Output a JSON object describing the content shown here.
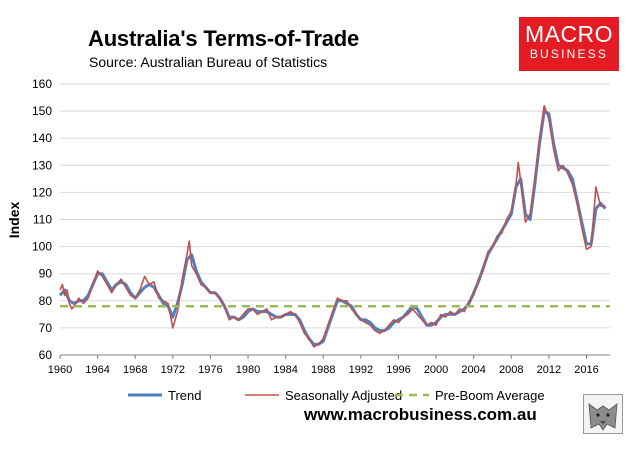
{
  "header": {
    "title": "Australia's Terms-of-Trade",
    "subtitle": "Source: Australian Bureau of Statistics"
  },
  "logo": {
    "line1": "MACRO",
    "line2": "BUSINESS",
    "color": "#e31b23"
  },
  "footer": {
    "url": "www.macrobusiness.com.au"
  },
  "colors": {
    "trend": "#4f81bd",
    "seasonally_adjusted": "#c0504d",
    "pre_boom": "#9bbb59",
    "grid": "#d9d9d9"
  },
  "chart_data": {
    "type": "line",
    "title": "Australia's Terms-of-Trade",
    "ylabel": "Index",
    "xlabel": "",
    "xlim": [
      1960,
      2018.5
    ],
    "ylim": [
      60,
      160
    ],
    "yticks": [
      "60",
      "70",
      "80",
      "90",
      "100",
      "110",
      "120",
      "130",
      "140",
      "150",
      "160"
    ],
    "xticks": [
      "1960",
      "1964",
      "1968",
      "1972",
      "1976",
      "1980",
      "1984",
      "1988",
      "1992",
      "1996",
      "2000",
      "2004",
      "2008",
      "2012",
      "2016"
    ],
    "grid": "horizontal",
    "legend_position": "bottom",
    "series": [
      {
        "name": "Trend",
        "style": "solid",
        "points": [
          [
            1960,
            82
          ],
          [
            1960.5,
            84
          ],
          [
            1961,
            80
          ],
          [
            1961.5,
            79
          ],
          [
            1962,
            80
          ],
          [
            1962.5,
            80
          ],
          [
            1963,
            82
          ],
          [
            1963.5,
            86
          ],
          [
            1964,
            90
          ],
          [
            1964.5,
            90
          ],
          [
            1965,
            87
          ],
          [
            1965.5,
            84
          ],
          [
            1966,
            86
          ],
          [
            1966.5,
            87
          ],
          [
            1967,
            86
          ],
          [
            1967.5,
            83
          ],
          [
            1968,
            81
          ],
          [
            1968.5,
            83
          ],
          [
            1969,
            85
          ],
          [
            1969.5,
            86
          ],
          [
            1970,
            85
          ],
          [
            1970.5,
            82
          ],
          [
            1971,
            79
          ],
          [
            1971.5,
            78
          ],
          [
            1972,
            74
          ],
          [
            1972.5,
            79
          ],
          [
            1973,
            86
          ],
          [
            1973.5,
            95
          ],
          [
            1974,
            97
          ],
          [
            1974.5,
            91
          ],
          [
            1975,
            87
          ],
          [
            1975.5,
            85
          ],
          [
            1976,
            83
          ],
          [
            1976.5,
            83
          ],
          [
            1977,
            81
          ],
          [
            1977.5,
            78
          ],
          [
            1978,
            74
          ],
          [
            1978.5,
            74
          ],
          [
            1979,
            73
          ],
          [
            1979.5,
            74
          ],
          [
            1980,
            76
          ],
          [
            1980.5,
            77
          ],
          [
            1981,
            76
          ],
          [
            1981.5,
            76
          ],
          [
            1982,
            76
          ],
          [
            1982.5,
            75
          ],
          [
            1983,
            74
          ],
          [
            1983.5,
            74
          ],
          [
            1984,
            75
          ],
          [
            1984.5,
            75
          ],
          [
            1985,
            75
          ],
          [
            1985.5,
            73
          ],
          [
            1986,
            69
          ],
          [
            1986.5,
            66
          ],
          [
            1987,
            64
          ],
          [
            1987.5,
            64
          ],
          [
            1988,
            65
          ],
          [
            1988.5,
            70
          ],
          [
            1989,
            75
          ],
          [
            1989.5,
            80
          ],
          [
            1990,
            80
          ],
          [
            1990.5,
            79
          ],
          [
            1991,
            78
          ],
          [
            1991.5,
            75
          ],
          [
            1992,
            73
          ],
          [
            1992.5,
            73
          ],
          [
            1993,
            72
          ],
          [
            1993.5,
            70
          ],
          [
            1994,
            69
          ],
          [
            1994.5,
            69
          ],
          [
            1995,
            70
          ],
          [
            1995.5,
            72
          ],
          [
            1996,
            73
          ],
          [
            1996.5,
            74
          ],
          [
            1997,
            76
          ],
          [
            1997.5,
            78
          ],
          [
            1998,
            77
          ],
          [
            1998.5,
            74
          ],
          [
            1999,
            71
          ],
          [
            1999.5,
            71
          ],
          [
            2000,
            72
          ],
          [
            2000.5,
            74
          ],
          [
            2001,
            75
          ],
          [
            2001.5,
            75
          ],
          [
            2002,
            75
          ],
          [
            2002.5,
            76
          ],
          [
            2003,
            77
          ],
          [
            2003.5,
            79
          ],
          [
            2004,
            83
          ],
          [
            2004.5,
            87
          ],
          [
            2005,
            92
          ],
          [
            2005.5,
            97
          ],
          [
            2006,
            100
          ],
          [
            2006.5,
            103
          ],
          [
            2007,
            106
          ],
          [
            2007.5,
            109
          ],
          [
            2008,
            112
          ],
          [
            2008.5,
            122
          ],
          [
            2009,
            125
          ],
          [
            2009.5,
            112
          ],
          [
            2010,
            110
          ],
          [
            2010.5,
            123
          ],
          [
            2011,
            138
          ],
          [
            2011.5,
            150
          ],
          [
            2012,
            149
          ],
          [
            2012.5,
            138
          ],
          [
            2013,
            130
          ],
          [
            2013.5,
            129
          ],
          [
            2014,
            128
          ],
          [
            2014.5,
            125
          ],
          [
            2015,
            117
          ],
          [
            2015.5,
            109
          ],
          [
            2016,
            101
          ],
          [
            2016.5,
            101
          ],
          [
            2017,
            114
          ],
          [
            2017.5,
            116
          ],
          [
            2018,
            114
          ]
        ]
      },
      {
        "name": "Seasonally Adjusted",
        "style": "solid",
        "points": [
          [
            1960,
            84
          ],
          [
            1960.25,
            86
          ],
          [
            1960.5,
            82
          ],
          [
            1960.75,
            84
          ],
          [
            1961,
            79
          ],
          [
            1961.25,
            77
          ],
          [
            1961.5,
            78
          ],
          [
            1962,
            81
          ],
          [
            1962.5,
            79
          ],
          [
            1963,
            81
          ],
          [
            1963.5,
            86
          ],
          [
            1964,
            91
          ],
          [
            1964.5,
            89
          ],
          [
            1965,
            86
          ],
          [
            1965.5,
            83
          ],
          [
            1966,
            86
          ],
          [
            1966.5,
            88
          ],
          [
            1967,
            85
          ],
          [
            1967.5,
            82
          ],
          [
            1968,
            81
          ],
          [
            1968.5,
            84
          ],
          [
            1969,
            89
          ],
          [
            1969.5,
            86
          ],
          [
            1970,
            87
          ],
          [
            1970.5,
            81
          ],
          [
            1971,
            80
          ],
          [
            1971.5,
            79
          ],
          [
            1972,
            70
          ],
          [
            1972.5,
            76
          ],
          [
            1973,
            88
          ],
          [
            1973.5,
            97
          ],
          [
            1973.75,
            102
          ],
          [
            1974,
            93
          ],
          [
            1974.5,
            90
          ],
          [
            1975,
            86
          ],
          [
            1975.5,
            85
          ],
          [
            1976,
            83
          ],
          [
            1976.5,
            83
          ],
          [
            1977,
            81
          ],
          [
            1977.5,
            78
          ],
          [
            1978,
            73
          ],
          [
            1978.5,
            74
          ],
          [
            1979,
            73
          ],
          [
            1979.5,
            75
          ],
          [
            1980,
            77
          ],
          [
            1980.5,
            77
          ],
          [
            1981,
            75
          ],
          [
            1981.5,
            76
          ],
          [
            1982,
            77
          ],
          [
            1982.5,
            73
          ],
          [
            1983,
            74
          ],
          [
            1983.5,
            74
          ],
          [
            1984,
            75
          ],
          [
            1984.5,
            76
          ],
          [
            1985,
            75
          ],
          [
            1985.5,
            72
          ],
          [
            1986,
            68
          ],
          [
            1986.5,
            66
          ],
          [
            1987,
            63
          ],
          [
            1987.5,
            64
          ],
          [
            1988,
            66
          ],
          [
            1988.5,
            71
          ],
          [
            1989,
            76
          ],
          [
            1989.5,
            81
          ],
          [
            1990,
            80
          ],
          [
            1990.5,
            80
          ],
          [
            1991,
            77
          ],
          [
            1991.5,
            75
          ],
          [
            1992,
            73
          ],
          [
            1992.5,
            72
          ],
          [
            1993,
            71
          ],
          [
            1993.5,
            69
          ],
          [
            1994,
            68
          ],
          [
            1994.5,
            69
          ],
          [
            1995,
            71
          ],
          [
            1995.5,
            73
          ],
          [
            1996,
            72
          ],
          [
            1996.5,
            74
          ],
          [
            1997,
            75
          ],
          [
            1997.5,
            77
          ],
          [
            1998,
            75
          ],
          [
            1998.5,
            73
          ],
          [
            1999,
            71
          ],
          [
            1999.5,
            72
          ],
          [
            2000,
            71
          ],
          [
            2000.5,
            75
          ],
          [
            2001,
            74
          ],
          [
            2001.5,
            76
          ],
          [
            2002,
            75
          ],
          [
            2002.5,
            77
          ],
          [
            2003,
            76
          ],
          [
            2003.5,
            80
          ],
          [
            2004,
            82
          ],
          [
            2004.5,
            88
          ],
          [
            2005,
            91
          ],
          [
            2005.5,
            98
          ],
          [
            2006,
            100
          ],
          [
            2006.5,
            104
          ],
          [
            2007,
            105
          ],
          [
            2007.5,
            110
          ],
          [
            2008,
            113
          ],
          [
            2008.5,
            123
          ],
          [
            2008.75,
            131
          ],
          [
            2009,
            124
          ],
          [
            2009.5,
            109
          ],
          [
            2010,
            112
          ],
          [
            2010.5,
            125
          ],
          [
            2011,
            140
          ],
          [
            2011.5,
            152
          ],
          [
            2012,
            147
          ],
          [
            2012.5,
            136
          ],
          [
            2013,
            128
          ],
          [
            2013.5,
            130
          ],
          [
            2014,
            127
          ],
          [
            2014.5,
            123
          ],
          [
            2015,
            116
          ],
          [
            2015.5,
            107
          ],
          [
            2016,
            99
          ],
          [
            2016.5,
            100
          ],
          [
            2017,
            122
          ],
          [
            2017.5,
            115
          ],
          [
            2018,
            115
          ]
        ]
      },
      {
        "name": "Pre-Boom Average",
        "style": "dashed",
        "constant": 78
      }
    ]
  }
}
